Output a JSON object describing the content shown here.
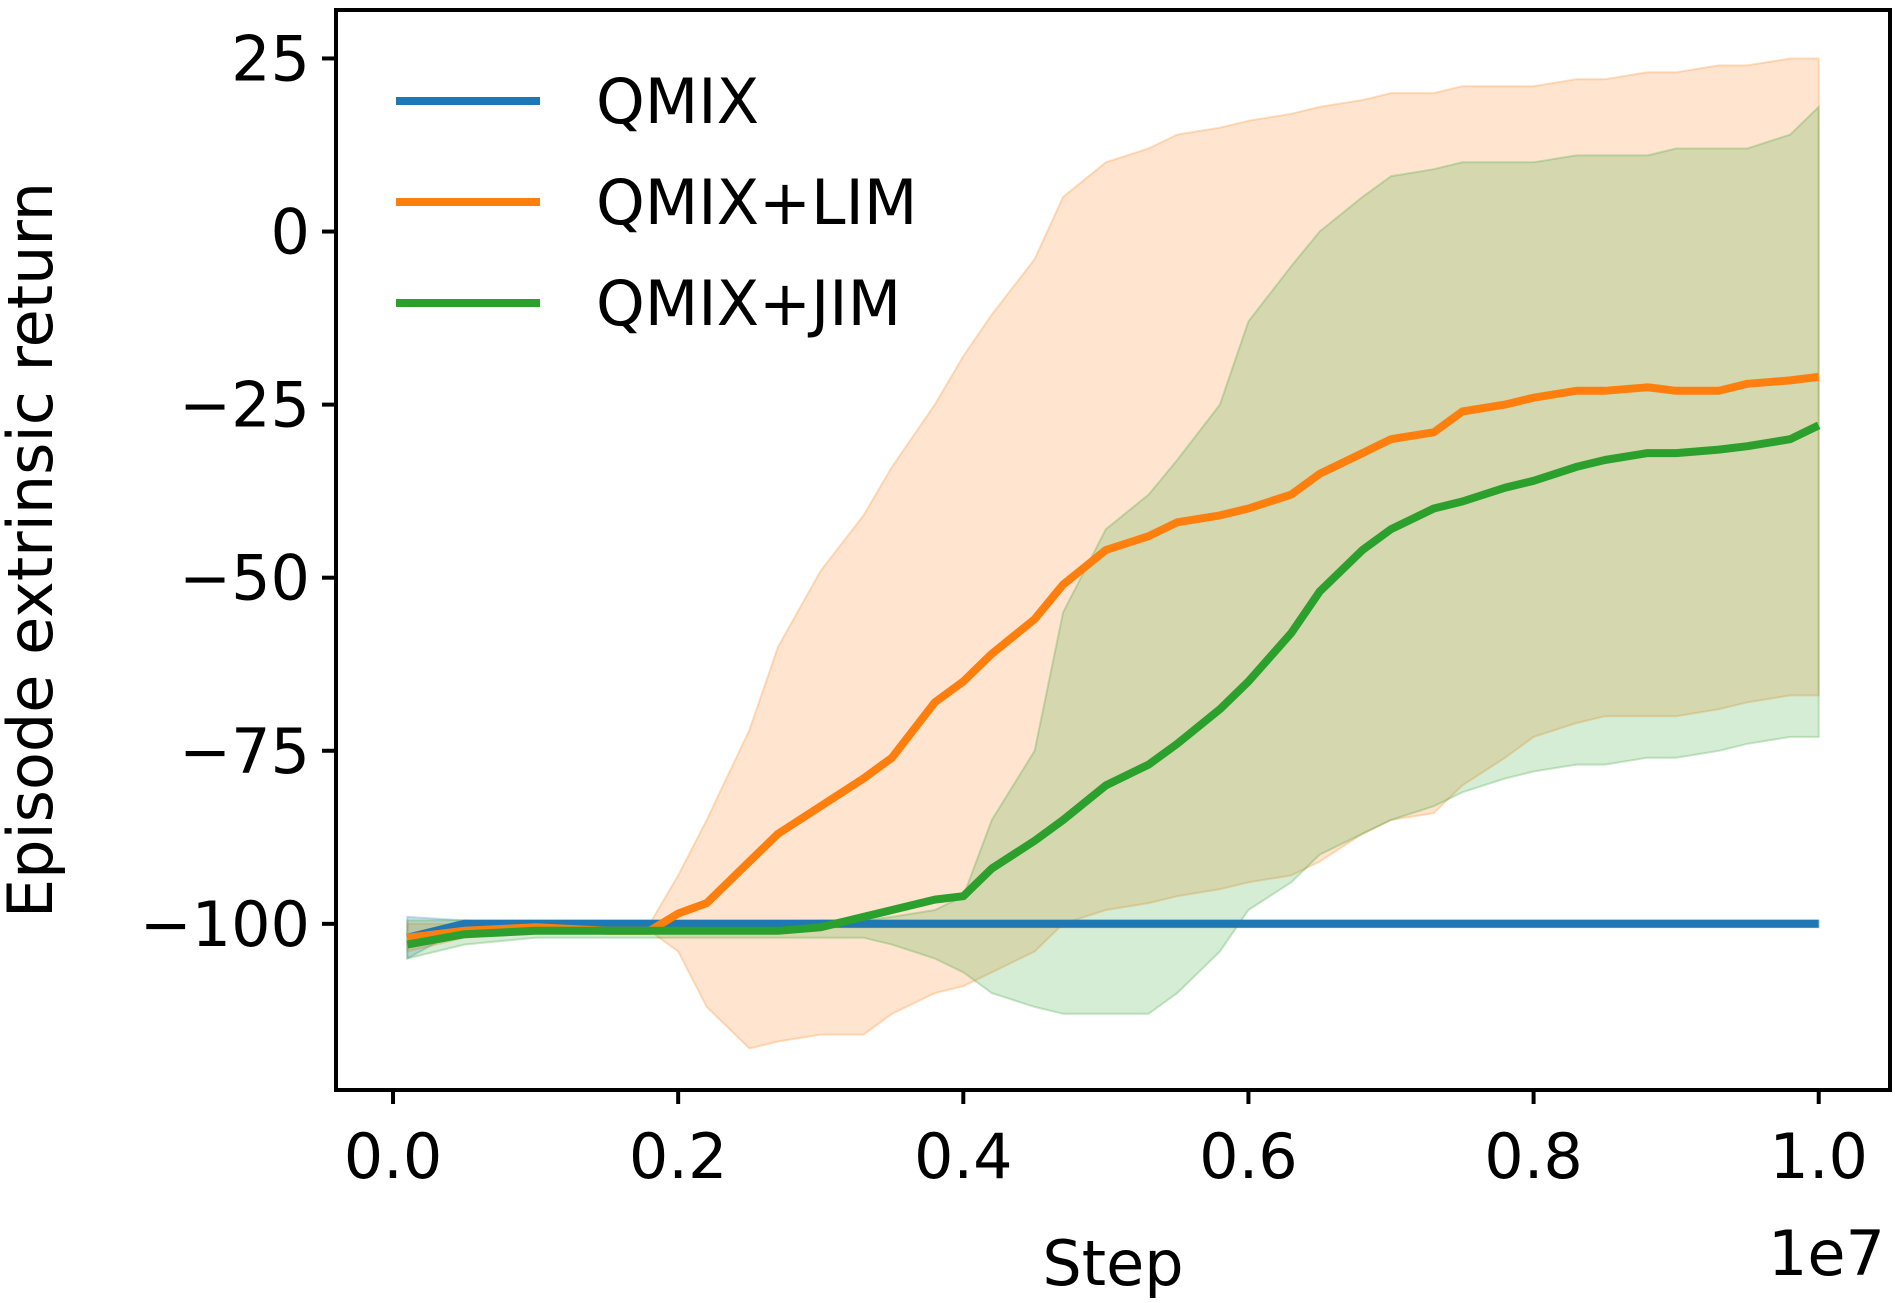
{
  "chart_data": {
    "type": "line",
    "xlabel": "Step",
    "ylabel": "Episode extrinsic return",
    "x_offset_text": "1e7",
    "xlim": [
      -0.04,
      1.05
    ],
    "ylim": [
      -124,
      32
    ],
    "xticks": [
      0.0,
      0.2,
      0.4,
      0.6,
      0.8,
      1.0
    ],
    "xtick_labels": [
      "0.0",
      "0.2",
      "0.4",
      "0.6",
      "0.8",
      "1.0"
    ],
    "yticks": [
      25,
      0,
      -25,
      -50,
      -75,
      -100
    ],
    "ytick_labels": [
      "25",
      "0",
      "−25",
      "−50",
      "−75",
      "−100"
    ],
    "legend_position": "upper-left",
    "x": [
      0.01,
      0.05,
      0.1,
      0.15,
      0.18,
      0.2,
      0.22,
      0.25,
      0.27,
      0.3,
      0.33,
      0.35,
      0.38,
      0.4,
      0.42,
      0.45,
      0.47,
      0.5,
      0.53,
      0.55,
      0.58,
      0.6,
      0.63,
      0.65,
      0.68,
      0.7,
      0.73,
      0.75,
      0.78,
      0.8,
      0.83,
      0.85,
      0.88,
      0.9,
      0.93,
      0.95,
      0.98,
      1.0
    ],
    "series": [
      {
        "name": "QMIX",
        "color": "#1f77b4",
        "values": [
          -102,
          -100,
          -100,
          -100,
          -100,
          -100,
          -100,
          -100,
          -100,
          -100,
          -100,
          -100,
          -100,
          -100,
          -100,
          -100,
          -100,
          -100,
          -100,
          -100,
          -100,
          -100,
          -100,
          -100,
          -100,
          -100,
          -100,
          -100,
          -100,
          -100,
          -100,
          -100,
          -100,
          -100,
          -100,
          -100,
          -100,
          -100
        ],
        "upper": [
          -99,
          -99.5,
          -99.5,
          -99.5,
          -99.5,
          -99.5,
          -99.5,
          -99.5,
          -99.5,
          -99.5,
          -99.5,
          -99.5,
          -99.5,
          -99.5,
          -99.5,
          -99.5,
          -99.5,
          -99.5,
          -99.5,
          -99.5,
          -99.5,
          -99.5,
          -99.5,
          -99.5,
          -99.5,
          -99.5,
          -99.5,
          -99.5,
          -99.5,
          -99.5,
          -99.5,
          -99.5,
          -99.5,
          -99.5,
          -99.5,
          -99.5,
          -99.5,
          -99.5
        ],
        "lower": [
          -105,
          -100.5,
          -100.5,
          -100.5,
          -100.5,
          -100.5,
          -100.5,
          -100.5,
          -100.5,
          -100.5,
          -100.5,
          -100.5,
          -100.5,
          -100.5,
          -100.5,
          -100.5,
          -100.5,
          -100.5,
          -100.5,
          -100.5,
          -100.5,
          -100.5,
          -100.5,
          -100.5,
          -100.5,
          -100.5,
          -100.5,
          -100.5,
          -100.5,
          -100.5,
          -100.5,
          -100.5,
          -100.5,
          -100.5,
          -100.5,
          -100.5,
          -100.5,
          -100.5
        ]
      },
      {
        "name": "QMIX+LIM",
        "color": "#ff7f0e",
        "values": [
          -102,
          -101,
          -100.5,
          -101,
          -101,
          -98.5,
          -97,
          -91,
          -87,
          -83,
          -79,
          -76,
          -68,
          -65,
          -61,
          -56,
          -51,
          -46,
          -44,
          -42,
          -41,
          -40,
          -38,
          -35,
          -32,
          -30,
          -29,
          -26,
          -25,
          -24,
          -23,
          -23,
          -22.5,
          -23,
          -23,
          -22,
          -21.5,
          -21
        ],
        "upper": [
          -100,
          -100,
          -100,
          -100,
          -100,
          -93,
          -85,
          -72,
          -60,
          -49,
          -41,
          -34,
          -25,
          -18,
          -12,
          -4,
          5,
          10,
          12,
          14,
          15,
          16,
          17,
          18,
          19,
          20,
          20,
          21,
          21,
          21,
          22,
          22,
          23,
          23,
          24,
          24,
          25,
          25
        ],
        "lower": [
          -104,
          -102,
          -101,
          -101,
          -101,
          -104,
          -112,
          -118,
          -117,
          -116,
          -116,
          -113,
          -110,
          -109,
          -107,
          -104,
          -100,
          -98,
          -97,
          -96,
          -95,
          -94,
          -93,
          -91,
          -87,
          -85,
          -84,
          -80,
          -76,
          -73,
          -71,
          -70,
          -70,
          -70,
          -69,
          -68,
          -67,
          -67
        ]
      },
      {
        "name": "QMIX+JIM",
        "color": "#2ca02c",
        "values": [
          -103,
          -101.5,
          -101,
          -101,
          -101,
          -101,
          -101,
          -101,
          -101,
          -100.5,
          -99,
          -98,
          -96.5,
          -96,
          -92,
          -88,
          -85,
          -80,
          -77,
          -74,
          -69,
          -65,
          -58,
          -52,
          -46,
          -43,
          -40,
          -39,
          -37,
          -36,
          -34,
          -33,
          -32,
          -32,
          -31.5,
          -31,
          -30,
          -28
        ],
        "upper": [
          -99.5,
          -99.5,
          -100,
          -100,
          -100,
          -100,
          -100,
          -100,
          -100,
          -99.5,
          -99.5,
          -99,
          -98,
          -96,
          -85,
          -75,
          -55,
          -43,
          -38,
          -33,
          -25,
          -13,
          -5,
          0,
          5,
          8,
          9,
          10,
          10,
          10,
          11,
          11,
          11,
          12,
          12,
          12,
          14,
          18
        ],
        "lower": [
          -105,
          -103,
          -102,
          -102,
          -102,
          -102,
          -102,
          -102,
          -102,
          -102,
          -102,
          -103,
          -105,
          -107,
          -110,
          -112,
          -113,
          -113,
          -113,
          -110,
          -104,
          -98,
          -94,
          -90,
          -87,
          -85,
          -83,
          -81,
          -79,
          -78,
          -77,
          -77,
          -76,
          -76,
          -75,
          -74,
          -73,
          -73
        ]
      }
    ]
  }
}
